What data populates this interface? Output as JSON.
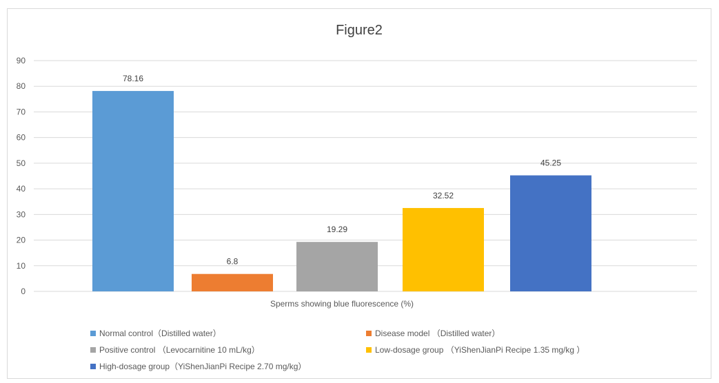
{
  "chart_data": {
    "type": "bar",
    "title": "Figure2",
    "xlabel": "Sperms showing blue fluorescence (%)",
    "ylabel": "",
    "ylim": [
      0,
      90
    ],
    "yticks": [
      "0",
      "10",
      "20",
      "30",
      "40",
      "50",
      "60",
      "70",
      "80",
      "90"
    ],
    "grid": true,
    "legend_position": "bottom",
    "series": [
      {
        "name": "Normal control（Distilled water）",
        "value": 78.16,
        "label": "78.16",
        "color": "#5b9bd5"
      },
      {
        "name": "Disease model （Distilled water）",
        "value": 6.8,
        "label": "6.8",
        "color": "#ed7d31"
      },
      {
        "name": "Positive control （Levocarnitine 10 mL/kg）",
        "value": 19.29,
        "label": "19.29",
        "color": "#a5a5a5"
      },
      {
        "name": "Low-dosage group （YiShenJianPi Recipe 1.35 mg/kg ）",
        "value": 32.52,
        "label": "32.52",
        "color": "#ffc000"
      },
      {
        "name": "High-dosage group（YiShenJianPi Recipe 2.70 mg/kg）",
        "value": 45.25,
        "label": "45.25",
        "color": "#4472c4"
      }
    ]
  }
}
